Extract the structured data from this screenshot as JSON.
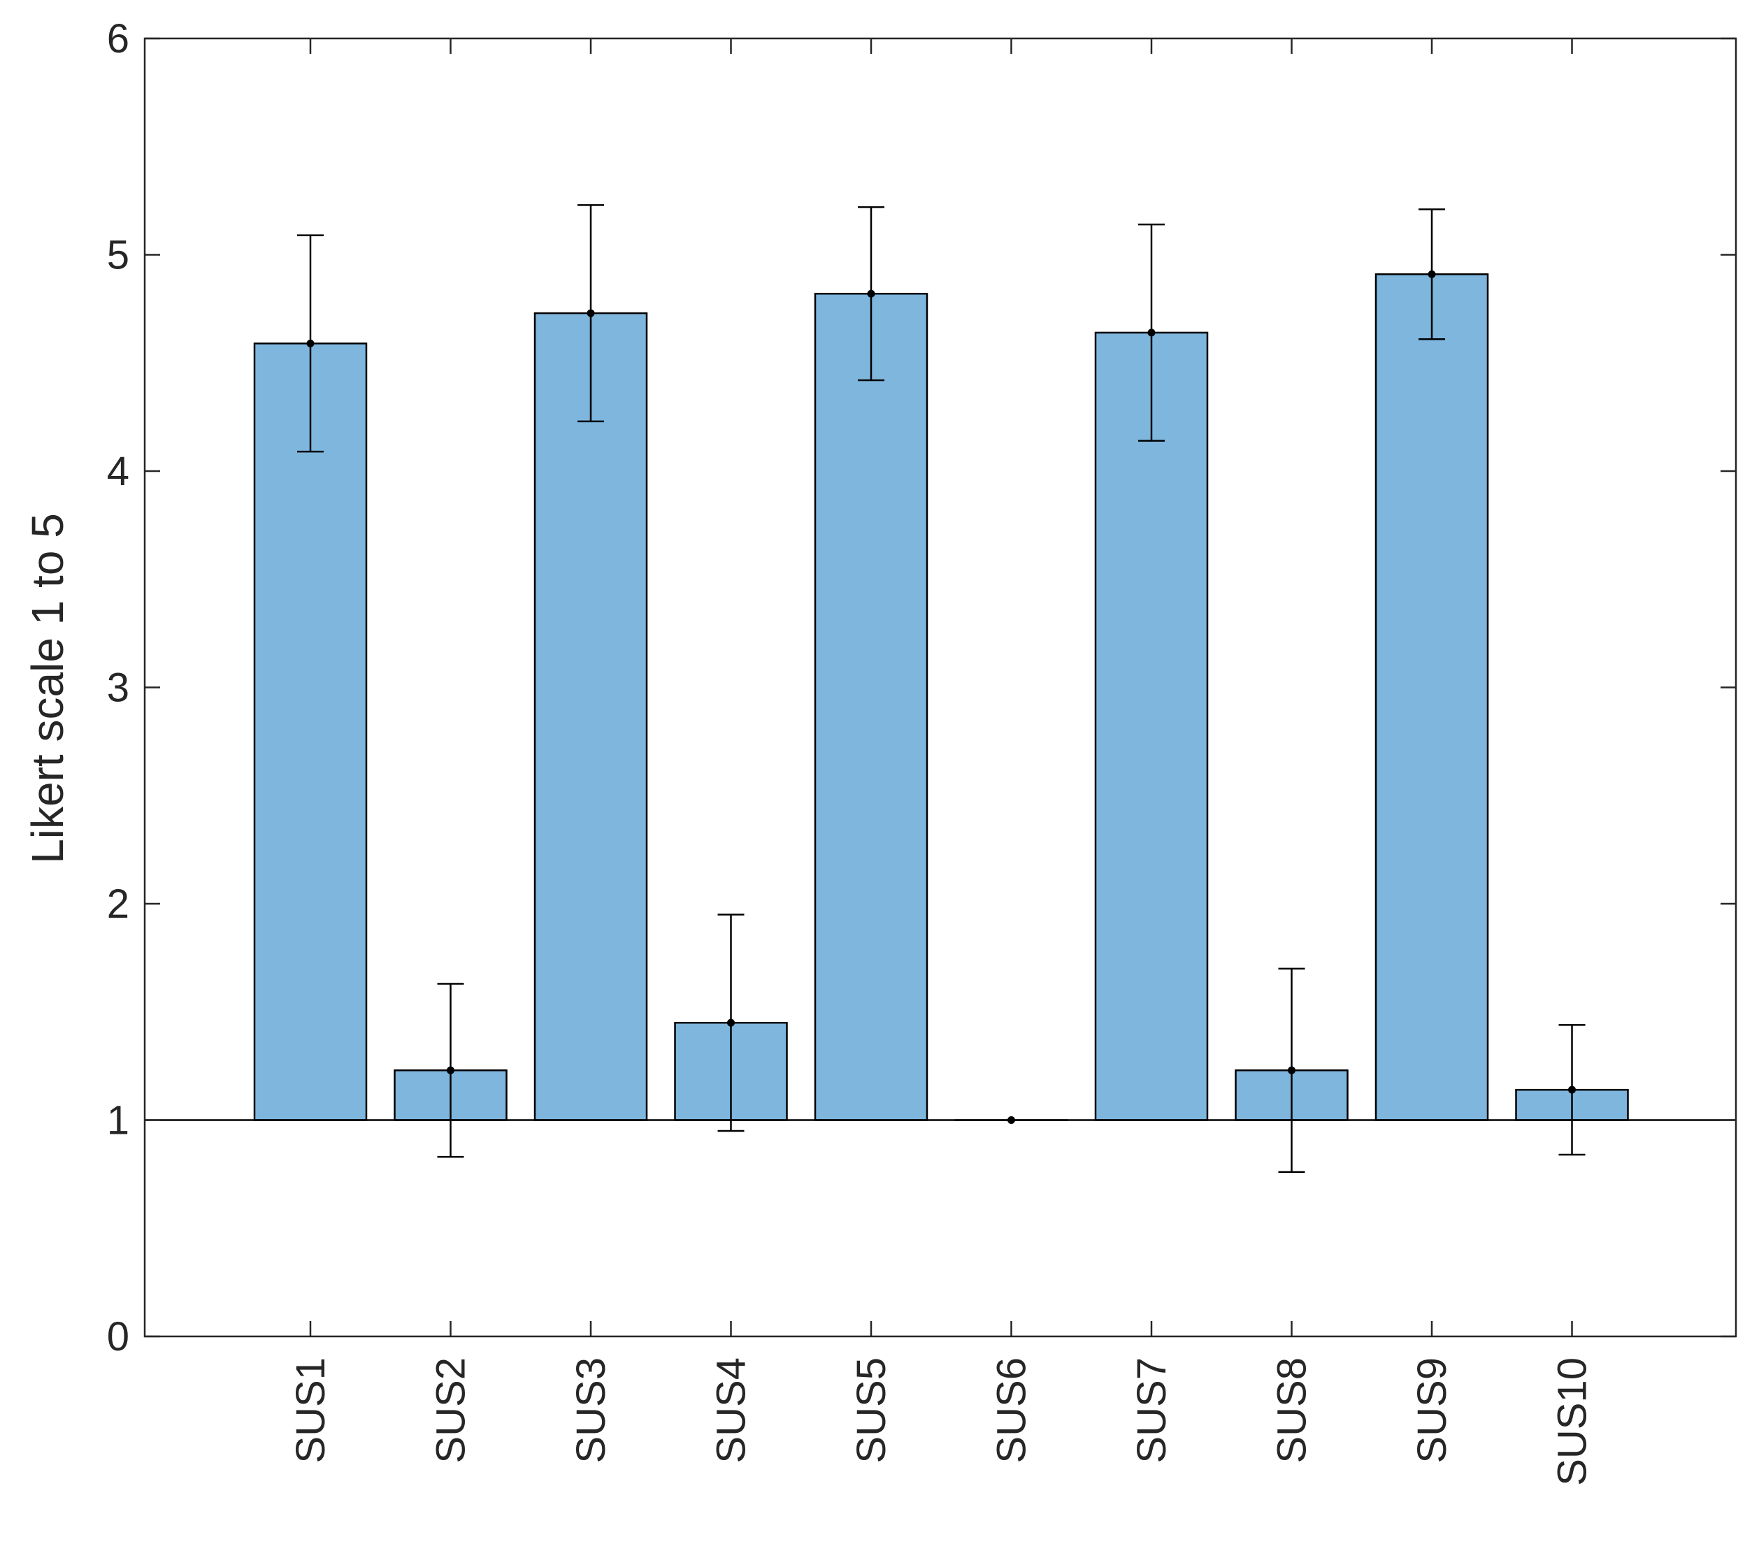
{
  "chart_data": {
    "type": "bar",
    "title": "",
    "xlabel": "",
    "ylabel": "Likert scale 1 to 5",
    "categories": [
      "SUS1",
      "SUS2",
      "SUS3",
      "SUS4",
      "SUS5",
      "SUS6",
      "SUS7",
      "SUS8",
      "SUS9",
      "SUS10"
    ],
    "values": [
      4.59,
      1.23,
      4.73,
      1.45,
      4.82,
      1.0,
      4.64,
      1.23,
      4.91,
      1.14
    ],
    "error_lower": [
      4.09,
      0.83,
      4.23,
      0.95,
      4.42,
      1.0,
      4.14,
      0.76,
      4.61,
      0.84
    ],
    "error_upper": [
      5.09,
      1.63,
      5.23,
      1.95,
      5.22,
      1.0,
      5.14,
      1.7,
      5.21,
      1.44
    ],
    "baseline": 1,
    "ylim": [
      0,
      6
    ],
    "yticks": [
      "0",
      "1",
      "2",
      "3",
      "4",
      "5",
      "6"
    ],
    "grid": false,
    "legend": "none",
    "bar_color": "#7EB6DE",
    "edge_color": "#000000"
  }
}
